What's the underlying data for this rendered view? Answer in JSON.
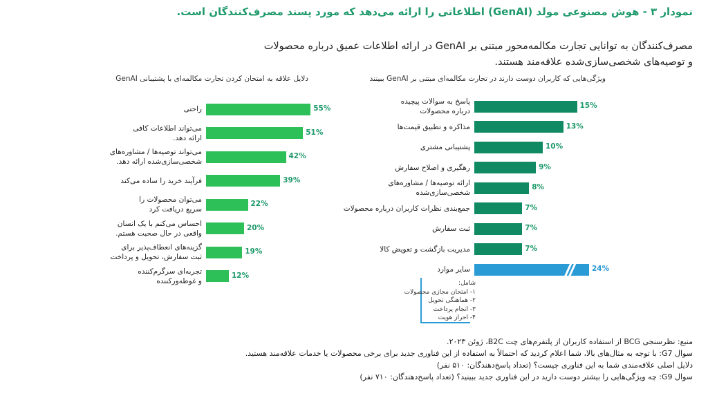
{
  "title": "نمودار ۳ - هوش مصنوعی مولد (GenAI) اطلاعاتی را ارائه می‌دهد که مورد پسند مصرف‌کنندگان است.",
  "subtitle_lines": [
    "مصرف‌کنندگان به توانایی تجارت مکالمه‌محور مبتنی بر GenAI در ارائه اطلاعات عمیق درباره محصولات",
    "و توصیه‌های شخصی‌سازی‌شده علاقه‌مند هستند."
  ],
  "colors": {
    "left_bars": "#2dbf58",
    "right_bars": "#0f8a63",
    "other_bar": "#2b9bd6",
    "value_text": "#1f9a6c",
    "title_text": "#1f9a6c"
  },
  "chart_data": [
    {
      "type": "bar",
      "orientation": "horizontal",
      "title": "دلایل علاقه به امتحان کردن تجارت مکالمه‌ای با پشتیبانی GenAI",
      "categories": [
        "راحتی",
        "می‌تواند اطلاعات کافی\nارائه دهد.",
        "می‌تواند توصیه‌ها / مشاوره‌های\nشخصی‌سازی‌شده ارائه دهد.",
        "فرآیند خرید را ساده می‌کند",
        "می‌توان محصولات را\nسریع دریافت کرد",
        "احساس می‌کنم با یک انسان\nواقعی در حال صحبت هستم.",
        "گزینه‌های انعطاف‌پذیر برای\nثبت سفارش، تحویل و پرداخت",
        "تجربه‌ای سرگرم‌کننده\nو غوطه‌ورکننده"
      ],
      "values": [
        55,
        51,
        42,
        39,
        22,
        20,
        19,
        12
      ],
      "value_labels": [
        "55%",
        "51%",
        "42%",
        "39%",
        "22%",
        "20%",
        "19%",
        "12%"
      ],
      "unit": "%"
    },
    {
      "type": "bar",
      "orientation": "horizontal",
      "title": "ویژگی‌هایی که کاربران دوست دارند در تجارت مکالمه‌ای مبتنی بر GenAI ببینند",
      "categories": [
        "پاسخ به سوالات پیچیده\nدرباره محصولات",
        "مذاکره و تطبیق قیمت‌ها",
        "پشتیبانی مشتری",
        "رهگیری و اصلاح سفارش",
        "ارائه توصیه‌ها / مشاوره‌های\nشخصی‌سازی‌شده",
        "جمع‌بندی نظرات کاربران درباره محصولات",
        "ثبت سفارش",
        "مدیریت بازگشت و تعویض کالا",
        "سایر موارد"
      ],
      "values": [
        15,
        13,
        10,
        9,
        8,
        7,
        7,
        7,
        24
      ],
      "value_labels": [
        "15%",
        "13%",
        "10%",
        "9%",
        "8%",
        "7%",
        "7%",
        "7%",
        "24%"
      ],
      "unit": "%",
      "axis_break_on": "سایر موارد",
      "other_includes": {
        "heading": "شامل:",
        "items": [
          "۱- امتحان مجازی محصولات",
          "۲- هماهنگی تحویل",
          "۳- انجام پرداخت",
          "۴- احراز هویت"
        ]
      }
    }
  ],
  "footnotes": [
    "منبع: نظرسنجی BCG از استفاده کاربران از پلتفرم‌های چت B2C، ژوئن ۲۰۲۳.",
    "سوال G7: با توجه به مثال‌های بالا، شما اعلام کردید که احتمالاً به استفاده از این فناوری جدید برای برخی محصولات یا خدمات علاقه‌مند هستید.",
    "دلایل اصلی علاقه‌مندی شما به این فناوری چیست؟ (تعداد پاسخ‌دهندگان: ۵۱۰ نفر)",
    "سوال G9: چه ویژگی‌هایی را بیشتر دوست دارید در این فناوری جدید ببینید؟ (تعداد پاسخ‌دهندگان: ۷۱۰ نفر)"
  ]
}
